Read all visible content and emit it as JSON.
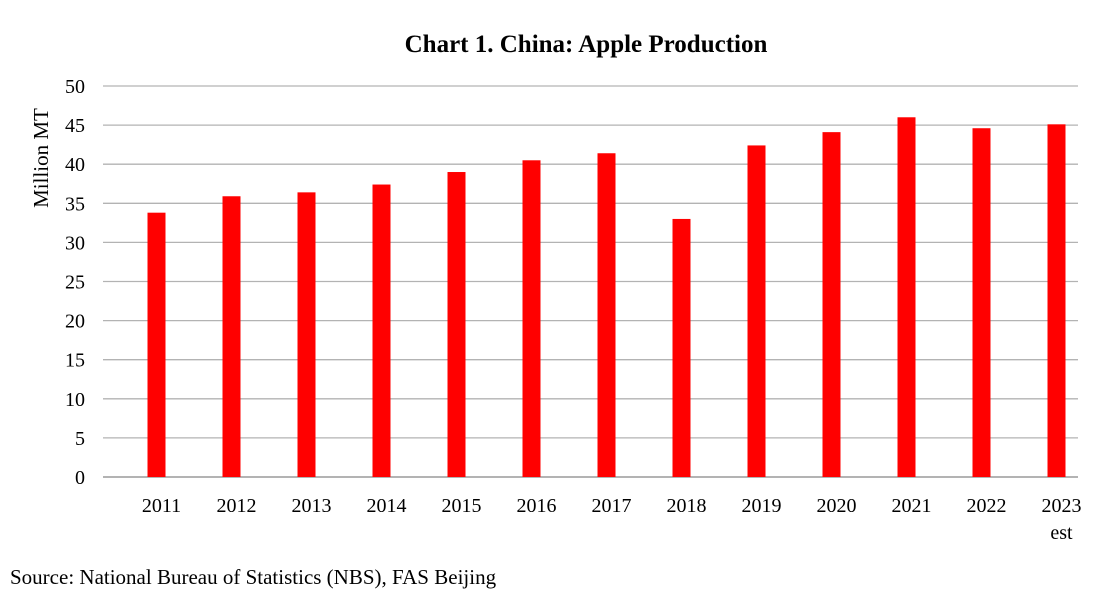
{
  "chart_data": {
    "type": "bar",
    "title": "Chart 1. China: Apple Production",
    "ylabel": "Million MT",
    "xlabel": "",
    "categories": [
      [
        "2011"
      ],
      [
        "2012"
      ],
      [
        "2013"
      ],
      [
        "2014"
      ],
      [
        "2015"
      ],
      [
        "2016"
      ],
      [
        "2017"
      ],
      [
        "2018"
      ],
      [
        "2019"
      ],
      [
        "2020"
      ],
      [
        "2021"
      ],
      [
        "2022"
      ],
      [
        "2023",
        "est"
      ]
    ],
    "values": [
      33.8,
      35.9,
      36.4,
      37.4,
      39.0,
      40.5,
      41.4,
      33.0,
      42.4,
      44.1,
      46.0,
      44.6,
      45.1
    ],
    "ylim": [
      0,
      50
    ],
    "yticks": [
      0,
      5,
      10,
      15,
      20,
      25,
      30,
      35,
      40,
      45,
      50
    ],
    "grid": true,
    "bar_color": "#ff0000"
  },
  "source": "Source: National Bureau of Statistics (NBS), FAS Beijing"
}
